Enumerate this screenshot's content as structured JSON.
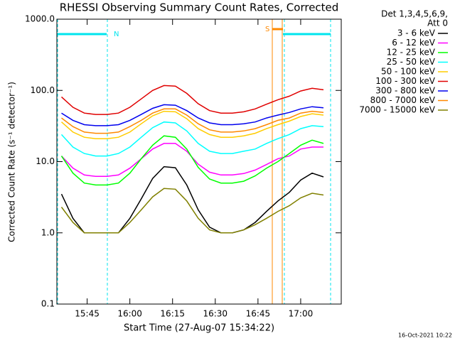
{
  "chart_data": {
    "type": "line",
    "title": "RHESSI Observing Summary Count Rates, Corrected",
    "x_label": "Start Time (27-Aug-07 15:34:22)",
    "y_label": "Corrected Count Rate (s⁻¹ detector⁻¹)",
    "legend_title": [
      "Det 1,3,4,5,6,9,",
      "Att 0"
    ],
    "timestamp": "16-Oct-2021 10:22",
    "annotations": [
      "N",
      "S"
    ],
    "log_y": true,
    "xlim": [
      "15:34:22",
      "17:14:15"
    ],
    "xticks": [
      "15:45",
      "16:00",
      "16:15",
      "16:30",
      "16:45",
      "17:00"
    ],
    "ylim": [
      0.1,
      1000
    ],
    "yticks": [
      {
        "value": 0.1,
        "label": "0.1"
      },
      {
        "value": 1,
        "label": "1.0"
      },
      {
        "value": 10,
        "label": "10.0"
      },
      {
        "value": 100,
        "label": "100.0"
      },
      {
        "value": 1000,
        "label": "1000.0"
      }
    ],
    "x": [
      "15:36",
      "15:40",
      "15:44",
      "15:48",
      "15:52",
      "15:56",
      "16:00",
      "16:04",
      "16:08",
      "16:12",
      "16:16",
      "16:20",
      "16:24",
      "16:28",
      "16:32",
      "16:36",
      "16:40",
      "16:44",
      "16:48",
      "16:52",
      "16:56",
      "17:00",
      "17:04",
      "17:08"
    ],
    "series": [
      {
        "name": "3 - 6 keV",
        "color": "#000000",
        "values": [
          3.5,
          1.6,
          1,
          1,
          1,
          1,
          1.6,
          3.0,
          5.8,
          8.5,
          8.2,
          4.7,
          2.1,
          1.2,
          1,
          1,
          1.1,
          1.4,
          2.0,
          2.8,
          3.7,
          5.5,
          6.9,
          6.1
        ]
      },
      {
        "name": "6 - 12 keV",
        "color": "#ff00ff",
        "values": [
          12,
          8.1,
          6.5,
          6.2,
          6.2,
          6.5,
          8.1,
          11,
          15,
          18,
          18,
          14,
          9.2,
          7.1,
          6.5,
          6.5,
          6.8,
          7.6,
          9.1,
          11,
          12,
          15,
          16,
          16
        ]
      },
      {
        "name": "12 - 25 keV",
        "color": "#00ff00",
        "values": [
          12,
          6.9,
          5,
          4.7,
          4.7,
          5,
          6.9,
          11,
          17,
          23,
          22,
          15,
          8.3,
          5.7,
          5,
          5,
          5.3,
          6.3,
          8.1,
          10,
          13,
          17,
          20,
          18
        ]
      },
      {
        "name": "25 - 50 keV",
        "color": "#00ffff",
        "values": [
          24,
          16,
          13,
          12,
          12,
          13,
          16,
          22,
          30,
          36,
          35,
          27,
          18,
          14,
          13,
          13,
          14,
          15,
          18,
          21,
          24,
          29,
          32,
          31
        ]
      },
      {
        "name": "50 - 100 keV",
        "color": "#ffcc00",
        "values": [
          36,
          26,
          22,
          21,
          21,
          22,
          26,
          34,
          44,
          51,
          50,
          40,
          29,
          24,
          22,
          22,
          23,
          25,
          29,
          33,
          37,
          43,
          47,
          45
        ]
      },
      {
        "name": "100 - 300 keV",
        "color": "#e00000",
        "values": [
          81,
          58,
          48,
          46,
          46,
          48,
          58,
          76,
          100,
          117,
          115,
          91,
          65,
          52,
          48,
          48,
          50,
          55,
          64,
          74,
          83,
          98,
          107,
          102
        ]
      },
      {
        "name": "300 - 800 keV",
        "color": "#0000ee",
        "values": [
          48,
          38,
          33,
          32,
          32,
          33,
          38,
          46,
          56,
          63,
          62,
          52,
          41,
          35,
          33,
          33,
          34,
          36,
          41,
          45,
          49,
          55,
          59,
          57
        ]
      },
      {
        "name": "800 - 7000 keV",
        "color": "#ff8800",
        "values": [
          41,
          31,
          26,
          25,
          25,
          26,
          31,
          38,
          48,
          55,
          55,
          45,
          34,
          28,
          26,
          26,
          27,
          29,
          33,
          38,
          41,
          48,
          51,
          49
        ]
      },
      {
        "name": "7000 - 15000 keV",
        "color": "#808000",
        "values": [
          2.3,
          1.4,
          1,
          1,
          1,
          1,
          1.4,
          2.1,
          3.2,
          4.2,
          4.1,
          2.8,
          1.6,
          1.1,
          1,
          1,
          1.1,
          1.3,
          1.6,
          2.0,
          2.4,
          3.1,
          3.6,
          3.4
        ]
      }
    ]
  }
}
